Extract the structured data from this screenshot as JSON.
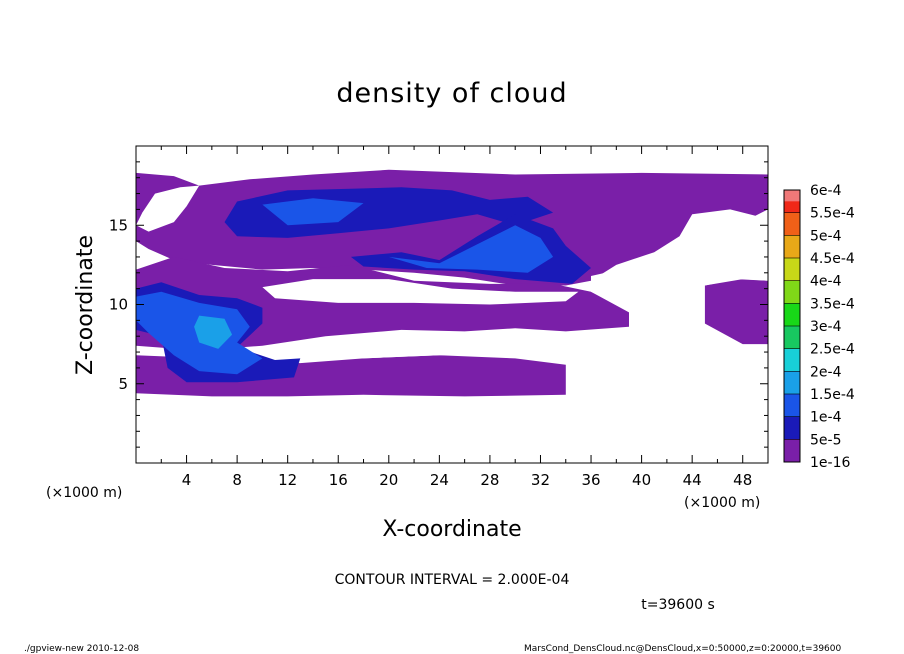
{
  "chart_data": {
    "type": "heatmap",
    "title": "density of cloud",
    "xlabel": "X-coordinate",
    "ylabel": "Z-coordinate",
    "x_unit": "(×1000 m)",
    "xlim": [
      0,
      50
    ],
    "ylim": [
      0,
      20
    ],
    "x_ticks": [
      "4",
      "8",
      "12",
      "16",
      "20",
      "24",
      "28",
      "32",
      "36",
      "40",
      "44",
      "48"
    ],
    "y_ticks": [
      "5",
      "10",
      "15"
    ],
    "colorbar": {
      "labels": [
        "1e-16",
        "5e-5",
        "1e-4",
        "1.5e-4",
        "2e-4",
        "2.5e-4",
        "3e-4",
        "3.5e-4",
        "4e-4",
        "4.5e-4",
        "5e-4",
        "5.5e-4",
        "6e-4"
      ],
      "colors": [
        "#7a1fa8",
        "#1a1ab8",
        "#1a55e8",
        "#1aa0e8",
        "#18d0d8",
        "#18c860",
        "#18d818",
        "#80d818",
        "#c8d818",
        "#e8a818",
        "#f06018",
        "#f02818",
        "#f07878"
      ]
    },
    "regions": [
      {
        "level": "1e-16",
        "x": [
          0,
          50
        ],
        "z": [
          4.3,
          18.3
        ],
        "note": "widespread thin cloud with clear gaps"
      },
      {
        "level": "5e-5",
        "x": [
          0,
          10
        ],
        "z": [
          5,
          11
        ],
        "note": "dense cloud at lower-left"
      },
      {
        "level": "1e-4",
        "x": [
          1,
          9
        ],
        "z": [
          6,
          10
        ],
        "note": "core at lower-left"
      },
      {
        "level": "1.5e-4",
        "x": [
          5,
          7
        ],
        "z": [
          7,
          9
        ],
        "note": "peak near x≈6, z≈8"
      },
      {
        "level": "5e-5",
        "x": [
          18,
          36
        ],
        "z": [
          11,
          16
        ],
        "note": "upper band"
      },
      {
        "level": "5e-5",
        "x": [
          8,
          26
        ],
        "z": [
          14,
          18
        ],
        "note": "top band"
      }
    ]
  },
  "contour_interval": "CONTOUR INTERVAL = 2.000E-04",
  "time_label": "t=39600 s",
  "footer_left": "./gpview-new   2010-12-08",
  "footer_right": "MarsCond_DensCloud.nc@DensCloud,x=0:50000,z=0:20000,t=39600"
}
